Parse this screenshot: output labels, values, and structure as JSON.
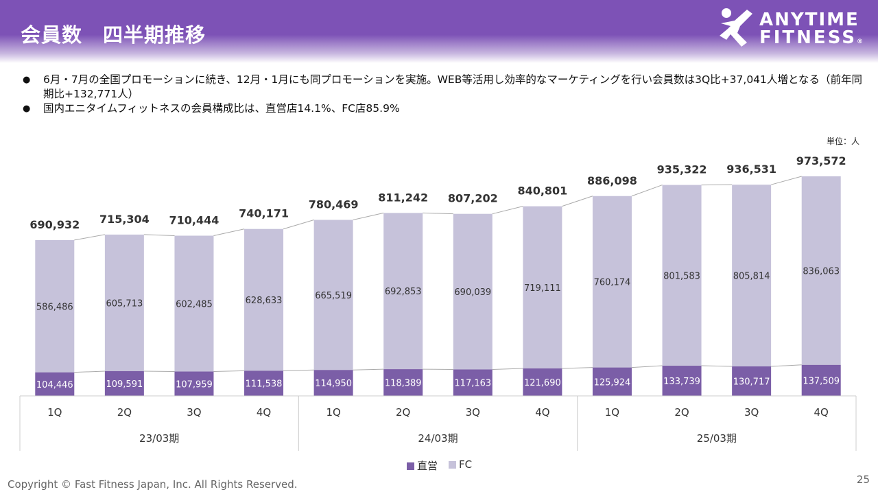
{
  "header": {
    "title": "会員数　四半期推移",
    "logo": {
      "line1": "ANYTIME",
      "line2": "FITNESS",
      "mark": "®",
      "icon": "running-man-icon"
    }
  },
  "bullets": [
    "6月・7月の全国プロモーションに続き、12月・1月にも同プロモーションを実施。WEB等活用し効率的なマーケティングを行い会員数は3Q比+37,041人増となる（前年同期比+132,771人）",
    "国内エニタイムフィットネスの会員構成比は、直営店14.1%、FC店85.9%"
  ],
  "unit_label": "単位：人",
  "chart_data": {
    "type": "bar",
    "stacked": true,
    "categories": [
      "1Q",
      "2Q",
      "3Q",
      "4Q",
      "1Q",
      "2Q",
      "3Q",
      "4Q",
      "1Q",
      "2Q",
      "3Q",
      "4Q"
    ],
    "groups": [
      {
        "label": "23/03期",
        "span": 4
      },
      {
        "label": "24/03期",
        "span": 4
      },
      {
        "label": "25/03期",
        "span": 4
      }
    ],
    "series": [
      {
        "name": "直営",
        "color": "#7b5ea7",
        "values": [
          104446,
          109591,
          107959,
          111538,
          114950,
          118389,
          117163,
          121690,
          125924,
          133739,
          130717,
          137509
        ]
      },
      {
        "name": "FC",
        "color": "#c6c2da",
        "values": [
          586486,
          605713,
          602485,
          628633,
          665519,
          692853,
          690039,
          719111,
          760174,
          801583,
          805814,
          836063
        ]
      }
    ],
    "totals": [
      690932,
      715304,
      710444,
      740171,
      780469,
      811242,
      807202,
      840801,
      886098,
      935322,
      936531,
      973572
    ],
    "ylim": [
      0,
      973572
    ],
    "connector_lines": true,
    "legend": "bottom",
    "grid": false
  },
  "footer": {
    "copyright": "Copyright © Fast Fitness Japan, Inc. All Rights Reserved.",
    "page": "25"
  }
}
